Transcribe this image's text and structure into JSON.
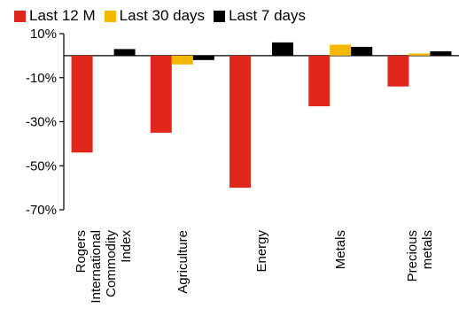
{
  "chart_data": {
    "type": "bar",
    "categories": [
      [
        "Rogers",
        "International",
        "Commodity",
        "Index"
      ],
      [
        "Agriculture"
      ],
      [
        "Energy"
      ],
      [
        "Metals"
      ],
      [
        "Precious",
        "metals"
      ]
    ],
    "series": [
      {
        "name": "Last 12 M",
        "color": "#e1261c",
        "values": [
          -44,
          -35,
          -60,
          -23,
          -14
        ]
      },
      {
        "name": "Last 30 days",
        "color": "#f5b800",
        "values": [
          0,
          -4,
          0,
          5,
          1
        ]
      },
      {
        "name": "Last 7 days",
        "color": "#000000",
        "values": [
          3,
          -2,
          6,
          4,
          2
        ]
      }
    ],
    "y_ticks": [
      "10%",
      "-10%",
      "-30%",
      "-50%",
      "-70%"
    ],
    "ylim": [
      -70,
      10
    ],
    "grid": false,
    "legend_position": "top"
  }
}
